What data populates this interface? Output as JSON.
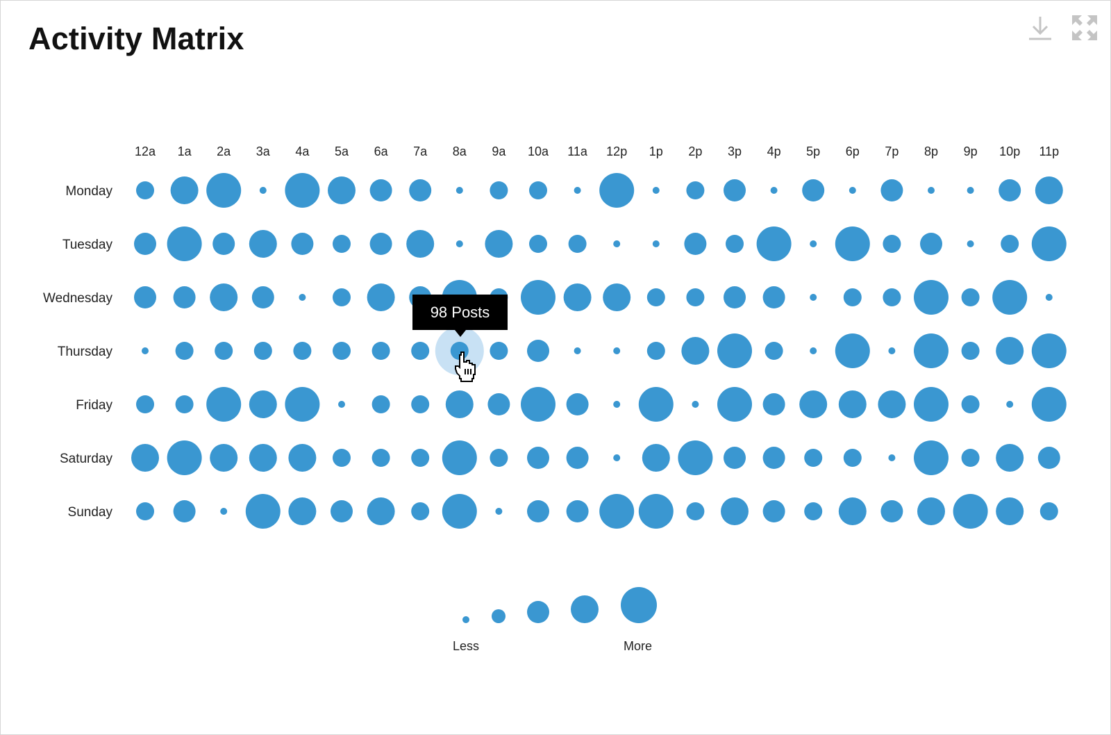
{
  "title": "Activity Matrix",
  "toolbar": {
    "download_icon": "download-icon",
    "expand_icon": "expand-icon"
  },
  "colors": {
    "dot": "#3a97d1",
    "highlight": "#c8e1f4",
    "tooltip_bg": "#000000"
  },
  "tooltip": {
    "text": "98 Posts",
    "day": "Thursday",
    "hour": "8a"
  },
  "legend": {
    "less_label": "Less",
    "more_label": "More",
    "steps": [
      1,
      2,
      3,
      4,
      5
    ]
  },
  "chart_data": {
    "type": "scatter",
    "title": "Activity Matrix",
    "x_categories": [
      "12a",
      "1a",
      "2a",
      "3a",
      "4a",
      "5a",
      "6a",
      "7a",
      "8a",
      "9a",
      "10a",
      "11a",
      "12p",
      "1p",
      "2p",
      "3p",
      "4p",
      "5p",
      "6p",
      "7p",
      "8p",
      "9p",
      "10p",
      "11p"
    ],
    "y_categories": [
      "Monday",
      "Tuesday",
      "Wednesday",
      "Thursday",
      "Friday",
      "Saturday",
      "Sunday"
    ],
    "size_scale": "relative activity level, 1 (Less) to 5 (More)",
    "values": [
      [
        2,
        4,
        5,
        1,
        5,
        4,
        3,
        3,
        1,
        2,
        2,
        1,
        5,
        1,
        2,
        3,
        1,
        3,
        1,
        3,
        1,
        1,
        3,
        4
      ],
      [
        3,
        5,
        3,
        4,
        3,
        2,
        3,
        4,
        1,
        4,
        2,
        2,
        1,
        1,
        3,
        2,
        5,
        1,
        5,
        2,
        3,
        1,
        2,
        5
      ],
      [
        3,
        3,
        4,
        3,
        1,
        2,
        4,
        3,
        5,
        2,
        5,
        4,
        4,
        2,
        2,
        3,
        3,
        1,
        2,
        2,
        5,
        2,
        5,
        1
      ],
      [
        1,
        2,
        2,
        2,
        2,
        2,
        2,
        2,
        2,
        2,
        3,
        1,
        1,
        2,
        4,
        5,
        2,
        1,
        5,
        1,
        5,
        2,
        4,
        5
      ],
      [
        2,
        2,
        5,
        4,
        5,
        1,
        2,
        2,
        4,
        3,
        5,
        3,
        1,
        5,
        1,
        5,
        3,
        4,
        4,
        4,
        5,
        2,
        1,
        5
      ],
      [
        4,
        5,
        4,
        4,
        4,
        2,
        2,
        2,
        5,
        2,
        3,
        3,
        1,
        4,
        5,
        3,
        3,
        2,
        2,
        1,
        5,
        2,
        4,
        3
      ],
      [
        2,
        3,
        1,
        5,
        4,
        3,
        4,
        2,
        5,
        1,
        3,
        3,
        5,
        5,
        2,
        4,
        3,
        2,
        4,
        3,
        4,
        5,
        4,
        2
      ]
    ]
  }
}
